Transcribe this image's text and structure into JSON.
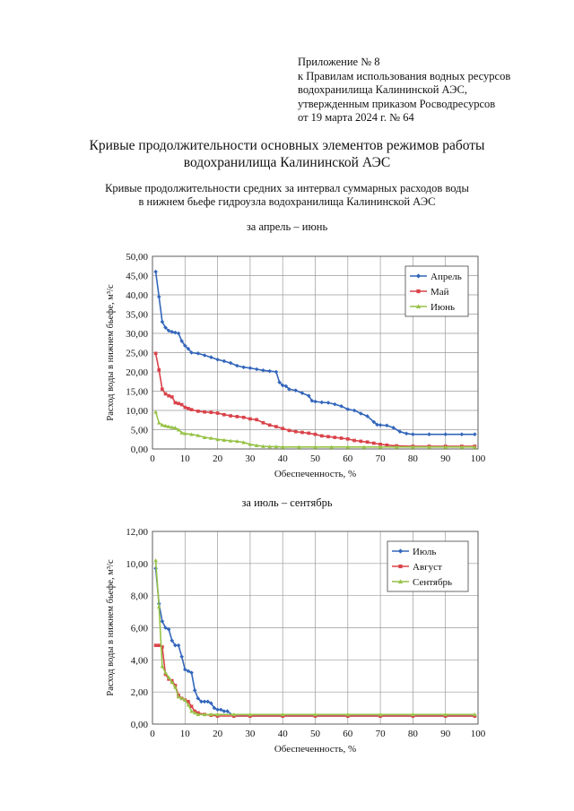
{
  "appendix": {
    "lines": [
      "Приложение № 8",
      "к Правилам использования водных ресурсов",
      "водохранилища Калининской АЭС,",
      "утвержденным приказом Росводресурсов",
      "от 19 марта 2024 г. № 64"
    ]
  },
  "title": {
    "line1": "Кривые продолжительности основных элементов режимов работы",
    "line2": "водохранилища Калининской АЭС"
  },
  "subtitle": {
    "line1": "Кривые продолжительности средних за интервал суммарных расходов воды",
    "line2": "в нижнем бьефе гидроузла водохранилища Калининской АЭС"
  },
  "colors": {
    "blue": "#3366bb",
    "red": "#d9434a",
    "green": "#97c247"
  },
  "chart_data": [
    {
      "type": "line",
      "title": "за апрель – июнь",
      "xlabel": "Обеспеченность, %",
      "ylabel": "Расход воды в нижнем бьефе, м³/с",
      "xlim": [
        0,
        100
      ],
      "ylim": [
        0,
        50
      ],
      "xticks": [
        "0",
        "10",
        "20",
        "30",
        "40",
        "50",
        "60",
        "70",
        "80",
        "90",
        "100"
      ],
      "yticks": [
        "0,00",
        "5,00",
        "10,00",
        "15,00",
        "20,00",
        "25,00",
        "30,00",
        "35,00",
        "40,00",
        "45,00",
        "50,00"
      ],
      "grid": true,
      "legend": "top-right",
      "series": [
        {
          "name": "Апрель",
          "color": "#3366bb",
          "marker": "diamond",
          "x": [
            1,
            2,
            3,
            4,
            5,
            6,
            7,
            8,
            9,
            10,
            11,
            12,
            14,
            16,
            18,
            20,
            22,
            24,
            26,
            28,
            30,
            32,
            34,
            36,
            38,
            39,
            40,
            41,
            42,
            44,
            46,
            48,
            49,
            50,
            52,
            54,
            56,
            58,
            60,
            62,
            64,
            66,
            68,
            69,
            70,
            72,
            74,
            76,
            78,
            80,
            85,
            90,
            95,
            99
          ],
          "y": [
            46.0,
            39.5,
            33.0,
            31.5,
            30.7,
            30.4,
            30.2,
            30.0,
            28.0,
            26.8,
            26.0,
            25.0,
            24.8,
            24.3,
            23.8,
            23.2,
            22.8,
            22.3,
            21.6,
            21.2,
            21.0,
            20.7,
            20.4,
            20.2,
            20.0,
            17.3,
            16.5,
            16.3,
            15.5,
            15.2,
            14.5,
            13.8,
            12.5,
            12.3,
            12.1,
            12.0,
            11.6,
            11.1,
            10.3,
            10.0,
            9.2,
            8.5,
            7.0,
            6.3,
            6.2,
            6.1,
            5.5,
            4.5,
            4.0,
            3.8,
            3.8,
            3.8,
            3.8,
            3.8
          ]
        },
        {
          "name": "Май",
          "color": "#d9434a",
          "marker": "square",
          "x": [
            1,
            2,
            3,
            4,
            5,
            6,
            7,
            8,
            9,
            10,
            11,
            12,
            14,
            16,
            18,
            20,
            22,
            24,
            26,
            28,
            30,
            32,
            34,
            36,
            38,
            40,
            42,
            44,
            46,
            48,
            50,
            52,
            54,
            56,
            58,
            60,
            62,
            64,
            66,
            68,
            70,
            72,
            75,
            80,
            85,
            90,
            95,
            99
          ],
          "y": [
            24.8,
            20.5,
            15.5,
            14.3,
            13.8,
            13.5,
            12.0,
            11.8,
            11.5,
            10.8,
            10.5,
            10.2,
            9.8,
            9.6,
            9.5,
            9.3,
            8.9,
            8.6,
            8.4,
            8.2,
            7.8,
            7.6,
            6.8,
            6.2,
            5.8,
            5.3,
            4.8,
            4.5,
            4.3,
            4.1,
            3.8,
            3.4,
            3.2,
            3.0,
            2.8,
            2.6,
            2.2,
            2.0,
            1.8,
            1.5,
            1.2,
            1.0,
            0.8,
            0.7,
            0.7,
            0.7,
            0.7,
            0.7
          ]
        },
        {
          "name": "Июнь",
          "color": "#97c247",
          "marker": "triangle",
          "x": [
            1,
            2,
            3,
            4,
            5,
            6,
            7,
            8,
            9,
            10,
            12,
            14,
            16,
            18,
            20,
            22,
            24,
            26,
            28,
            30,
            32,
            34,
            36,
            38,
            40,
            45,
            50,
            55,
            60,
            65,
            70,
            75,
            80,
            85,
            90,
            95,
            99
          ],
          "y": [
            9.6,
            6.8,
            6.2,
            6.0,
            5.8,
            5.6,
            5.5,
            5.0,
            4.2,
            4.0,
            3.8,
            3.5,
            3.0,
            2.8,
            2.5,
            2.3,
            2.1,
            2.0,
            1.7,
            1.2,
            0.9,
            0.7,
            0.6,
            0.6,
            0.5,
            0.5,
            0.5,
            0.5,
            0.5,
            0.5,
            0.5,
            0.5,
            0.5,
            0.5,
            0.5,
            0.5,
            0.5
          ]
        }
      ]
    },
    {
      "type": "line",
      "title": "за июль – сентябрь",
      "xlabel": "Обеспеченность, %",
      "ylabel": "Расход воды в нижнем бьефе, м³/с",
      "xlim": [
        0,
        100
      ],
      "ylim": [
        0,
        12
      ],
      "xticks": [
        "0",
        "10",
        "20",
        "30",
        "40",
        "50",
        "60",
        "70",
        "80",
        "90",
        "100"
      ],
      "yticks": [
        "0,00",
        "2,00",
        "4,00",
        "6,00",
        "8,00",
        "10,00",
        "12,00"
      ],
      "grid": true,
      "legend": "top-right",
      "series": [
        {
          "name": "Июль",
          "color": "#3366bb",
          "marker": "diamond",
          "x": [
            1,
            2,
            3,
            4,
            5,
            6,
            7,
            8,
            9,
            10,
            11,
            12,
            13,
            14,
            15,
            16,
            17,
            18,
            19,
            20,
            21,
            22,
            23,
            25,
            30,
            40,
            50,
            60,
            70,
            80,
            90,
            99
          ],
          "y": [
            9.7,
            7.5,
            6.4,
            6.0,
            5.9,
            5.2,
            4.9,
            4.9,
            4.2,
            3.4,
            3.3,
            3.2,
            2.1,
            1.6,
            1.4,
            1.4,
            1.4,
            1.3,
            1.0,
            0.9,
            0.9,
            0.8,
            0.8,
            0.5,
            0.5,
            0.5,
            0.5,
            0.5,
            0.5,
            0.5,
            0.5,
            0.5
          ]
        },
        {
          "name": "Август",
          "color": "#d9434a",
          "marker": "square",
          "x": [
            1,
            2,
            3,
            4,
            5,
            6,
            7,
            8,
            9,
            10,
            11,
            12,
            13,
            14,
            16,
            18,
            20,
            25,
            30,
            40,
            50,
            60,
            70,
            80,
            90,
            99
          ],
          "y": [
            4.9,
            4.9,
            4.8,
            3.1,
            2.8,
            2.7,
            2.4,
            1.8,
            1.6,
            1.5,
            1.4,
            1.1,
            0.8,
            0.7,
            0.6,
            0.55,
            0.5,
            0.5,
            0.5,
            0.5,
            0.5,
            0.5,
            0.5,
            0.5,
            0.5,
            0.5
          ]
        },
        {
          "name": "Сентябрь",
          "color": "#97c247",
          "marker": "triangle",
          "x": [
            1,
            2,
            3,
            4,
            5,
            6,
            7,
            8,
            9,
            10,
            11,
            12,
            13,
            14,
            16,
            18,
            20,
            25,
            30,
            40,
            50,
            60,
            70,
            80,
            90,
            99
          ],
          "y": [
            10.2,
            7.3,
            3.6,
            3.2,
            2.9,
            2.6,
            2.3,
            1.7,
            1.6,
            1.5,
            1.2,
            0.8,
            0.7,
            0.6,
            0.6,
            0.6,
            0.6,
            0.6,
            0.6,
            0.6,
            0.6,
            0.6,
            0.6,
            0.6,
            0.6,
            0.6
          ]
        }
      ]
    }
  ]
}
